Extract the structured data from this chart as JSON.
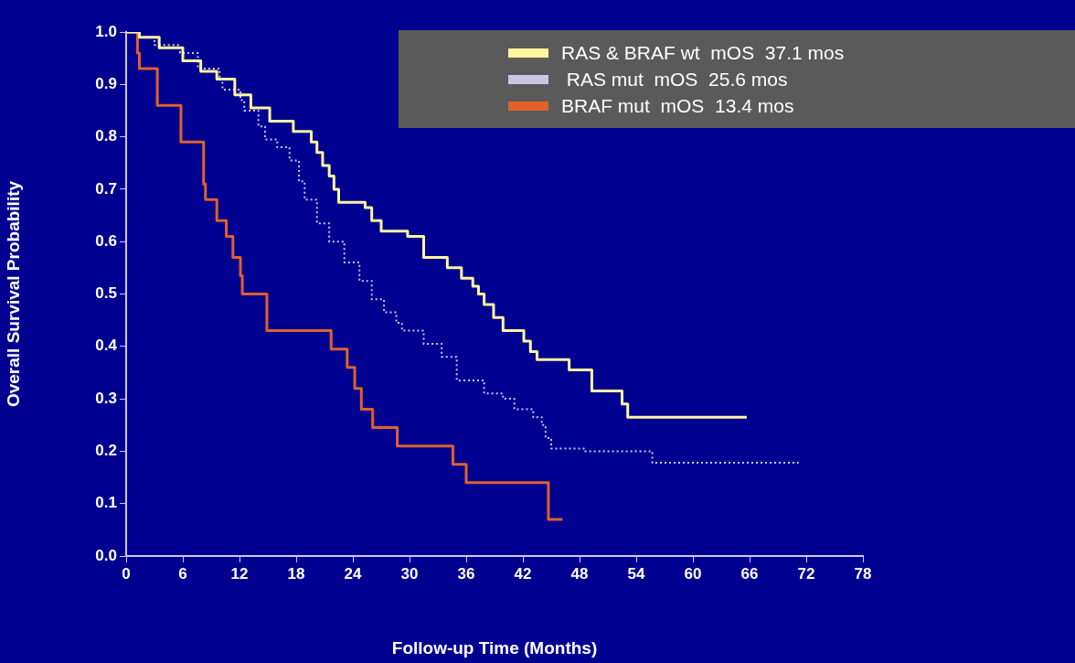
{
  "chart_data": {
    "type": "step",
    "xlabel": "Follow-up Time (Months)",
    "ylabel": "Overall Survival Probability",
    "xlim": [
      0,
      78
    ],
    "xticks": [
      0,
      6,
      12,
      18,
      24,
      30,
      36,
      42,
      48,
      54,
      60,
      66,
      72,
      78
    ],
    "ylim": [
      0,
      1
    ],
    "yticks": [
      {
        "value": 0,
        "label": "0.0"
      },
      {
        "value": 0.1,
        "label": "0.1"
      },
      {
        "value": 0.2,
        "label": "0.2"
      },
      {
        "value": 0.3,
        "label": "0.3"
      },
      {
        "value": 0.4,
        "label": "0.4"
      },
      {
        "value": 0.5,
        "label": "0.5"
      },
      {
        "value": 0.6,
        "label": "0.6"
      },
      {
        "value": 0.7,
        "label": "0.7"
      },
      {
        "value": 0.8,
        "label": "0.8"
      },
      {
        "value": 0.9,
        "label": "0.9"
      },
      {
        "value": 1,
        "label": "1.0"
      }
    ],
    "grid": false,
    "legend": "top right",
    "marker": "none",
    "series": [
      {
        "name": "RAS & BRAF wt  mOS  37.1 mos",
        "color": "#fff5a0",
        "line_style": "solid",
        "x": [
          0,
          1.4,
          3.5,
          6.0,
          7.9,
          9.6,
          11.5,
          13.2,
          15.2,
          17.7,
          19.6,
          20.2,
          20.8,
          21.5,
          22.0,
          22.5,
          25.3,
          26.0,
          27.0,
          29.8,
          31.5,
          34.0,
          35.5,
          36.7,
          37.3,
          37.9,
          38.9,
          39.9,
          42.1,
          42.8,
          43.5,
          46.9,
          49.3,
          52.5,
          53.1,
          65.7
        ],
        "values": [
          1,
          0.99,
          0.97,
          0.945,
          0.925,
          0.91,
          0.88,
          0.855,
          0.83,
          0.81,
          0.79,
          0.77,
          0.745,
          0.725,
          0.7,
          0.675,
          0.665,
          0.64,
          0.62,
          0.61,
          0.57,
          0.55,
          0.53,
          0.515,
          0.5,
          0.48,
          0.455,
          0.43,
          0.41,
          0.39,
          0.375,
          0.355,
          0.315,
          0.29,
          0.265,
          0.265
        ]
      },
      {
        "name": " RAS mut  mOS  25.6 mos",
        "color": "#c8c8e6",
        "line_style": "dotted",
        "x": [
          0,
          1.4,
          3.0,
          5.7,
          7.6,
          9.9,
          10.2,
          12.1,
          12.5,
          14.0,
          14.7,
          16.0,
          17.3,
          18.3,
          18.9,
          20.2,
          21.5,
          23.1,
          24.7,
          26.0,
          27.3,
          28.6,
          29.2,
          31.5,
          33.4,
          35.0,
          37.9,
          39.9,
          41.1,
          43.1,
          44.0,
          44.4,
          45.0,
          48.6,
          55.7,
          71.2
        ],
        "values": [
          1,
          0.99,
          0.975,
          0.96,
          0.93,
          0.91,
          0.89,
          0.87,
          0.85,
          0.82,
          0.795,
          0.78,
          0.755,
          0.715,
          0.68,
          0.635,
          0.6,
          0.56,
          0.525,
          0.49,
          0.465,
          0.445,
          0.43,
          0.405,
          0.38,
          0.335,
          0.31,
          0.3,
          0.28,
          0.265,
          0.25,
          0.225,
          0.205,
          0.2,
          0.178,
          0.178
        ]
      },
      {
        "name": "BRAF mut  mOS  13.4 mos",
        "color": "#e0602a",
        "line_style": "solid",
        "x": [
          0,
          1.2,
          1.4,
          3.3,
          5.8,
          8.2,
          8.4,
          9.6,
          10.6,
          11.3,
          12.1,
          12.3,
          14.9,
          21.7,
          23.4,
          24.2,
          24.9,
          26.1,
          28.7,
          34.6,
          36.0,
          44.7,
          46.2
        ],
        "values": [
          1,
          0.96,
          0.93,
          0.86,
          0.79,
          0.71,
          0.68,
          0.64,
          0.61,
          0.57,
          0.535,
          0.5,
          0.43,
          0.395,
          0.36,
          0.32,
          0.28,
          0.245,
          0.21,
          0.175,
          0.14,
          0.07,
          0.07
        ]
      }
    ]
  }
}
